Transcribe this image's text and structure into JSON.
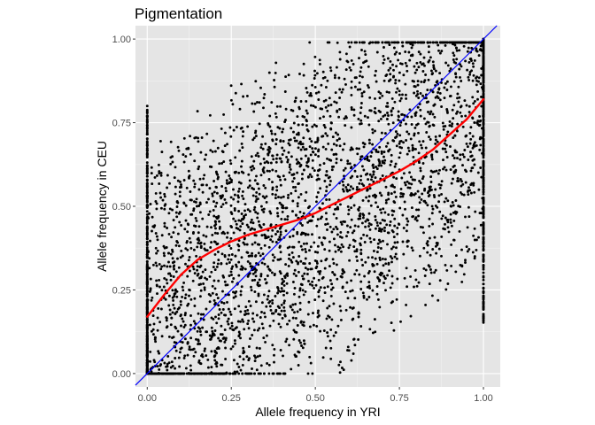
{
  "chart_data": {
    "type": "scatter",
    "title": "Pigmentation",
    "xlabel": "Allele frequency in YRI",
    "ylabel": "Allele frequency in CEU",
    "xlim": [
      -0.035,
      1.05
    ],
    "ylim": [
      -0.04,
      1.04
    ],
    "x_ticks": [
      0,
      0.25,
      0.5,
      0.75,
      1
    ],
    "y_ticks": [
      0,
      0.25,
      0.5,
      0.75,
      1
    ],
    "x_tick_labels": [
      "0.00",
      "0.25",
      "0.50",
      "0.75",
      "1.00"
    ],
    "y_tick_labels": [
      "0.00",
      "0.25",
      "0.50",
      "0.75",
      "1.00"
    ],
    "grid": true,
    "legend": "none",
    "panel_background": "#e5e5e5",
    "point_color": "#000000",
    "reference_line": {
      "slope": 1,
      "intercept": 0,
      "color": "#0000ff"
    },
    "smooth_line": {
      "color": "#ff0000",
      "x": [
        0,
        0.05,
        0.1,
        0.15,
        0.2,
        0.25,
        0.3,
        0.35,
        0.4,
        0.45,
        0.5,
        0.55,
        0.6,
        0.65,
        0.7,
        0.75,
        0.8,
        0.85,
        0.9,
        0.95,
        1.0
      ],
      "y": [
        0.17,
        0.235,
        0.295,
        0.34,
        0.37,
        0.395,
        0.415,
        0.43,
        0.445,
        0.46,
        0.48,
        0.505,
        0.53,
        0.555,
        0.58,
        0.605,
        0.635,
        0.67,
        0.715,
        0.76,
        0.82
      ]
    },
    "scatter_points": {
      "n_interior": 3300,
      "n_on_x_zero": 420,
      "n_on_x_one": 420,
      "seed": 7
    }
  }
}
